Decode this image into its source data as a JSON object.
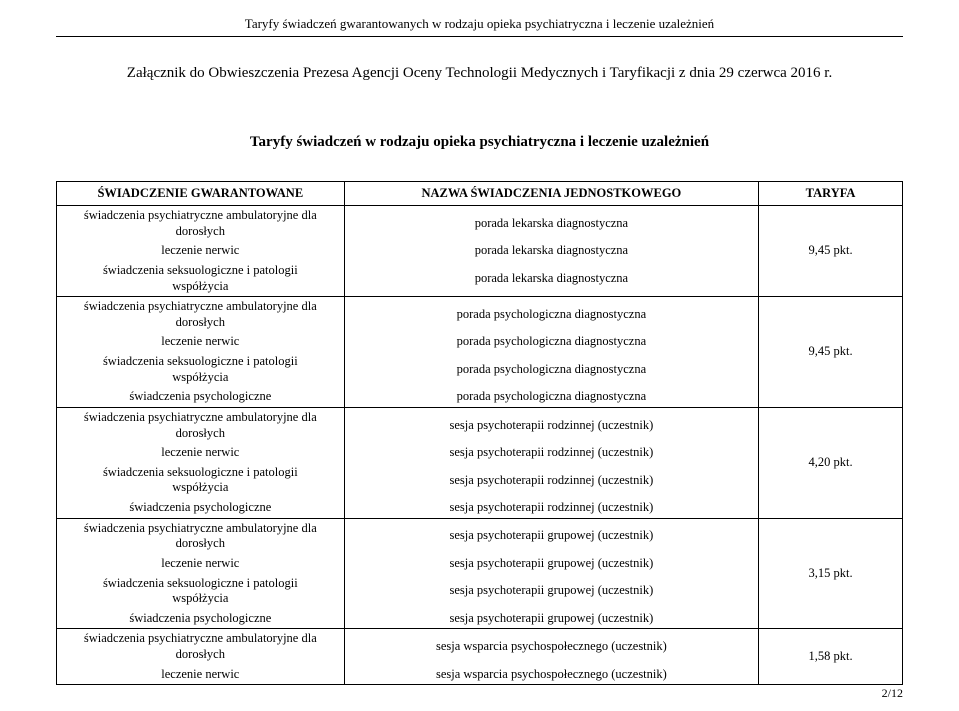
{
  "header": {
    "running_title": "Taryfy świadczeń gwarantowanych w rodzaju opieka psychiatryczna i leczenie uzależnień",
    "attachment_line": "Załącznik do Obwieszczenia Prezesa Agencji Oceny Technologii Medycznych i Taryfikacji z dnia 29 czerwca 2016 r.",
    "main_title": "Taryfy świadczeń w rodzaju opieka psychiatryczna i leczenie uzależnień"
  },
  "table": {
    "columns": {
      "col1": "ŚWIADCZENIE GWARANTOWANE",
      "col2": "NAZWA ŚWIADCZENIA JEDNOSTKOWEGO",
      "col3": "TARYFA"
    },
    "col_widths": [
      "34%",
      "49%",
      "17%"
    ],
    "border_color": "#000000",
    "groups": [
      {
        "tariff": "9,45 pkt.",
        "rows": [
          {
            "svc": "świadczenia psychiatryczne ambulatoryjne dla\ndorosłych",
            "name": "porada lekarska diagnostyczna"
          },
          {
            "svc": "leczenie nerwic",
            "name": "porada lekarska diagnostyczna"
          },
          {
            "svc": "świadczenia seksuologiczne i patologii\nwspółżycia",
            "name": "porada lekarska diagnostyczna"
          }
        ]
      },
      {
        "tariff": "9,45 pkt.",
        "rows": [
          {
            "svc": "świadczenia psychiatryczne ambulatoryjne dla\ndorosłych",
            "name": "porada psychologiczna diagnostyczna"
          },
          {
            "svc": "leczenie nerwic",
            "name": "porada psychologiczna diagnostyczna"
          },
          {
            "svc": "świadczenia seksuologiczne i patologii\nwspółżycia",
            "name": "porada psychologiczna diagnostyczna"
          },
          {
            "svc": "świadczenia psychologiczne",
            "name": "porada psychologiczna diagnostyczna"
          }
        ]
      },
      {
        "tariff": "4,20 pkt.",
        "rows": [
          {
            "svc": "świadczenia psychiatryczne ambulatoryjne dla\ndorosłych",
            "name": "sesja psychoterapii rodzinnej (uczestnik)"
          },
          {
            "svc": "leczenie nerwic",
            "name": "sesja psychoterapii rodzinnej (uczestnik)"
          },
          {
            "svc": "świadczenia seksuologiczne i patologii\nwspółżycia",
            "name": "sesja psychoterapii rodzinnej (uczestnik)"
          },
          {
            "svc": "świadczenia psychologiczne",
            "name": "sesja psychoterapii rodzinnej (uczestnik)"
          }
        ]
      },
      {
        "tariff": "3,15 pkt.",
        "rows": [
          {
            "svc": "świadczenia psychiatryczne ambulatoryjne dla\ndorosłych",
            "name": "sesja psychoterapii grupowej (uczestnik)"
          },
          {
            "svc": "leczenie nerwic",
            "name": "sesja psychoterapii grupowej (uczestnik)"
          },
          {
            "svc": "świadczenia seksuologiczne i patologii\nwspółżycia",
            "name": "sesja psychoterapii grupowej (uczestnik)"
          },
          {
            "svc": "świadczenia psychologiczne",
            "name": "sesja psychoterapii grupowej (uczestnik)"
          }
        ]
      },
      {
        "tariff": "1,58 pkt.",
        "rows": [
          {
            "svc": "świadczenia psychiatryczne ambulatoryjne dla\ndorosłych",
            "name": "sesja wsparcia psychospołecznego (uczestnik)"
          },
          {
            "svc": "leczenie nerwic",
            "name": "sesja wsparcia psychospołecznego (uczestnik)"
          }
        ]
      }
    ]
  },
  "footer": {
    "page_number": "2/12"
  }
}
